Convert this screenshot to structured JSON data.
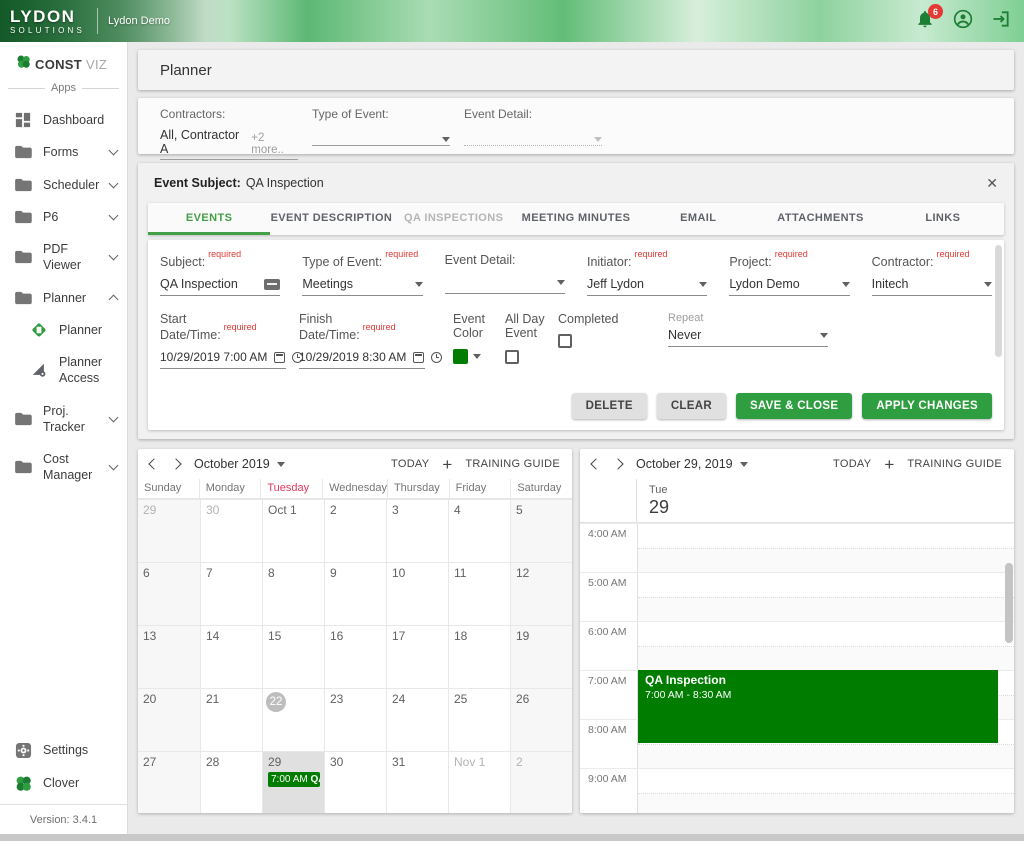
{
  "colors": {
    "accent_green": "#2f9e41",
    "tab_green": "#43a047",
    "event_green": "#007d00",
    "required_red": "#e53935",
    "today_red": "#e5395f"
  },
  "topbar": {
    "logo_primary": "LYDON",
    "logo_secondary": "SOLUTIONS",
    "project_name": "Lydon Demo",
    "notification_badge": "6"
  },
  "sidebar": {
    "brand_bold": "CONST",
    "brand_light": "VIZ",
    "apps_label": "Apps",
    "items": [
      {
        "key": "dashboard",
        "label": "Dashboard",
        "icon": "dashboard-icon",
        "chevron": null,
        "indent": false
      },
      {
        "key": "forms",
        "label": "Forms",
        "icon": "folder-icon",
        "chevron": "down",
        "indent": false
      },
      {
        "key": "scheduler",
        "label": "Scheduler",
        "icon": "folder-icon",
        "chevron": "down",
        "indent": false
      },
      {
        "key": "p6",
        "label": "P6",
        "icon": "folder-icon",
        "chevron": "down",
        "indent": false
      },
      {
        "key": "pdf-viewer",
        "label": "PDF Viewer",
        "icon": "folder-icon",
        "chevron": "down",
        "indent": false
      },
      {
        "key": "planner",
        "label": "Planner",
        "icon": "folder-icon",
        "chevron": "up",
        "indent": false
      },
      {
        "key": "planner-sub",
        "label": "Planner",
        "icon": "planner-icon",
        "chevron": null,
        "indent": true
      },
      {
        "key": "planner-access",
        "label": "Planner Access",
        "icon": "planner-access-icon",
        "chevron": null,
        "indent": true
      },
      {
        "key": "proj-tracker",
        "label": "Proj. Tracker",
        "icon": "folder-icon",
        "chevron": "down",
        "indent": false
      },
      {
        "key": "cost-manager",
        "label": "Cost Manager",
        "icon": "folder-icon",
        "chevron": "down",
        "indent": false
      }
    ],
    "settings_label": "Settings",
    "clover_label": "Clover",
    "version": "Version: 3.4.1"
  },
  "header": {
    "title": "Planner"
  },
  "filters": {
    "contractors": {
      "label": "Contractors:",
      "value": "All, Contractor A",
      "more": "+2 more.."
    },
    "type_of_event": {
      "label": "Type of Event:",
      "value": ""
    },
    "event_detail": {
      "label": "Event Detail:",
      "value": ""
    }
  },
  "event_panel": {
    "header_label": "Event Subject:",
    "header_value": "QA Inspection",
    "close_glyph": "✕",
    "tabs": [
      {
        "label": "EVENTS",
        "state": "active"
      },
      {
        "label": "EVENT DESCRIPTION",
        "state": "normal"
      },
      {
        "label": "QA INSPECTIONS",
        "state": "disabled"
      },
      {
        "label": "MEETING MINUTES",
        "state": "normal"
      },
      {
        "label": "EMAIL",
        "state": "normal"
      },
      {
        "label": "ATTACHMENTS",
        "state": "normal"
      },
      {
        "label": "LINKS",
        "state": "normal"
      }
    ],
    "required_tag": "required",
    "form": {
      "subject": {
        "label": "Subject:",
        "value": "QA Inspection"
      },
      "type_of_event": {
        "label": "Type of Event:",
        "value": "Meetings"
      },
      "event_detail": {
        "label": "Event Detail:",
        "value": ""
      },
      "initiator": {
        "label": "Initiator:",
        "value": "Jeff Lydon"
      },
      "project": {
        "label": "Project:",
        "value": "Lydon Demo"
      },
      "contractor": {
        "label": "Contractor:",
        "value": "Initech"
      },
      "start": {
        "label": "Start Date/Time:",
        "value": "10/29/2019 7:00 AM"
      },
      "finish": {
        "label": "Finish Date/Time:",
        "value": "10/29/2019 8:30 AM"
      },
      "event_color_label": "Event Color",
      "all_day_label": "All Day Event",
      "completed_label": "Completed",
      "repeat_label": "Repeat",
      "repeat_value": "Never"
    },
    "buttons": {
      "delete": "DELETE",
      "clear": "CLEAR",
      "save_close": "SAVE & CLOSE",
      "apply": "APPLY CHANGES"
    }
  },
  "month_calendar": {
    "title": "October 2019",
    "today_label": "TODAY",
    "training_guide_label": "TRAINING GUIDE",
    "weekdays": [
      "Sunday",
      "Monday",
      "Tuesday",
      "Wednesday",
      "Thursday",
      "Friday",
      "Saturday"
    ],
    "today_weekday": "Tuesday",
    "weeks": [
      [
        {
          "d": "29",
          "muted": true
        },
        {
          "d": "30",
          "muted": true
        },
        {
          "d": "Oct 1"
        },
        {
          "d": "2"
        },
        {
          "d": "3"
        },
        {
          "d": "4"
        },
        {
          "d": "5"
        }
      ],
      [
        {
          "d": "6"
        },
        {
          "d": "7"
        },
        {
          "d": "8"
        },
        {
          "d": "9"
        },
        {
          "d": "10"
        },
        {
          "d": "11"
        },
        {
          "d": "12"
        }
      ],
      [
        {
          "d": "13"
        },
        {
          "d": "14"
        },
        {
          "d": "15"
        },
        {
          "d": "16"
        },
        {
          "d": "17"
        },
        {
          "d": "18"
        },
        {
          "d": "19"
        }
      ],
      [
        {
          "d": "20"
        },
        {
          "d": "21"
        },
        {
          "d": "22",
          "today": true
        },
        {
          "d": "23"
        },
        {
          "d": "24"
        },
        {
          "d": "25"
        },
        {
          "d": "26"
        }
      ],
      [
        {
          "d": "27"
        },
        {
          "d": "28"
        },
        {
          "d": "29",
          "selected": true,
          "event": true
        },
        {
          "d": "30"
        },
        {
          "d": "31"
        },
        {
          "d": "Nov 1",
          "muted": true
        },
        {
          "d": "2",
          "muted": true
        }
      ]
    ],
    "event_chip": {
      "time": "7:00 AM",
      "title": "QA I..."
    }
  },
  "day_calendar": {
    "title": "October 29, 2019",
    "today_label": "TODAY",
    "training_guide_label": "TRAINING GUIDE",
    "day_name": "Tue",
    "day_number": "29",
    "times": [
      "4:00 AM",
      "5:00 AM",
      "6:00 AM",
      "7:00 AM",
      "8:00 AM",
      "9:00 AM"
    ],
    "event": {
      "title": "QA Inspection",
      "time_range": "7:00 AM - 8:30 AM"
    }
  }
}
